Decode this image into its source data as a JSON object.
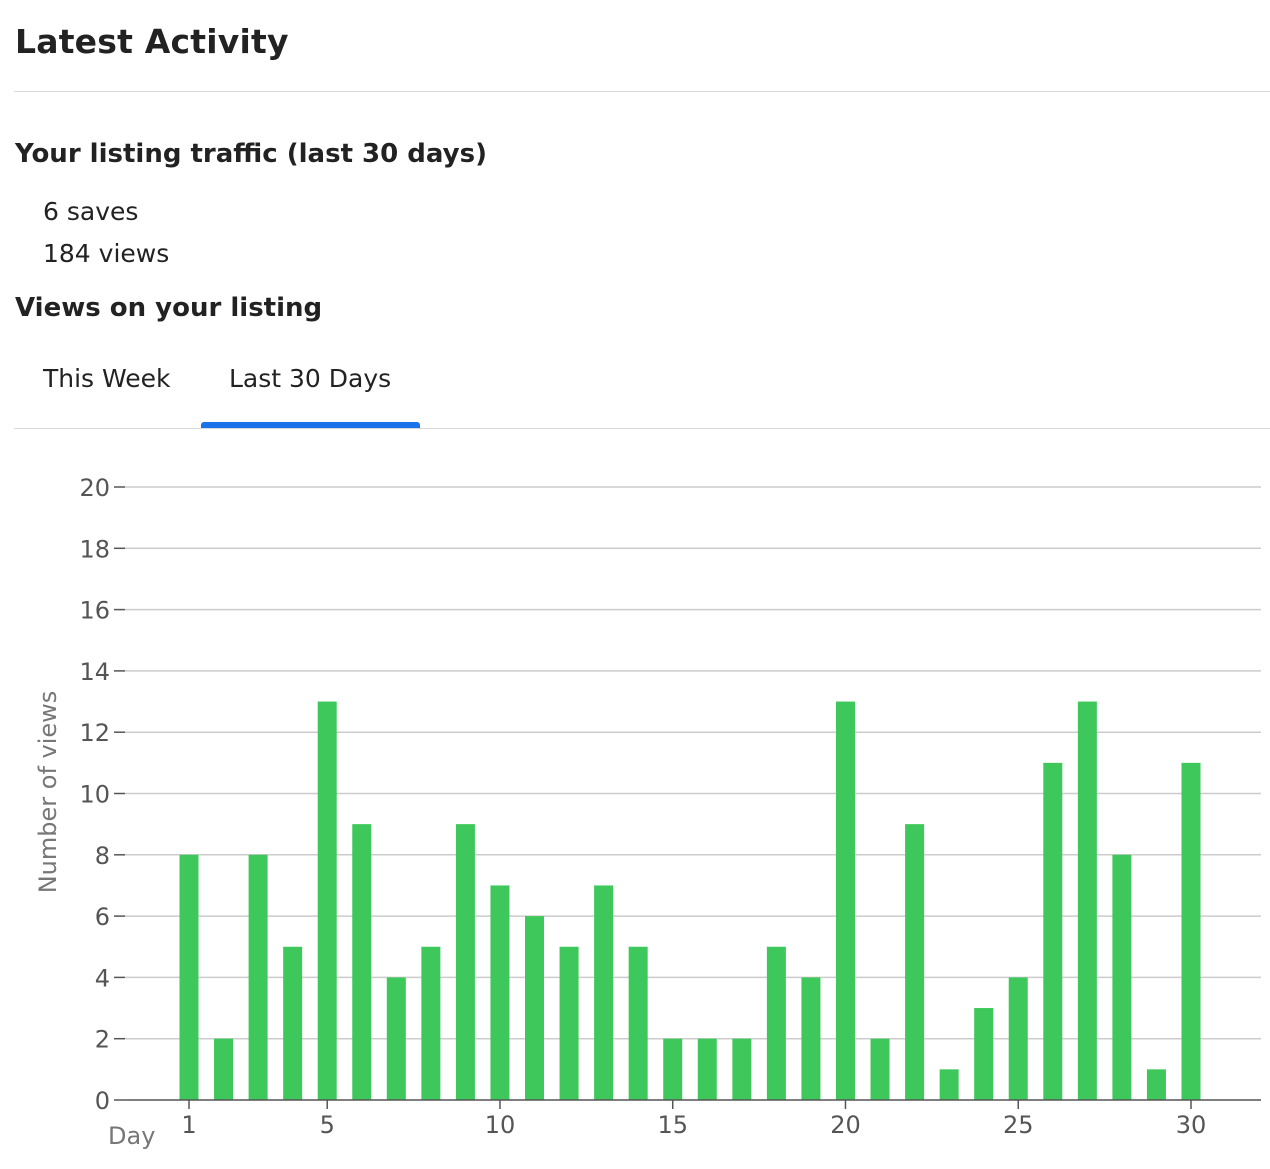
{
  "header": {
    "title": "Latest Activity"
  },
  "traffic": {
    "title": "Your listing traffic (last 30 days)",
    "saves_count": "6",
    "saves_label": "saves",
    "views_count": "184",
    "views_label": "views"
  },
  "views_section": {
    "title": "Views on your listing",
    "tabs": [
      {
        "label": "This Week",
        "active": false
      },
      {
        "label": "Last 30 Days",
        "active": true
      }
    ]
  },
  "colors": {
    "bar": "#3ec75a",
    "tab_indicator": "#1a73e8",
    "grid": "#cccccc",
    "axis": "#555555"
  },
  "chart_data": {
    "type": "bar",
    "x": [
      1,
      2,
      3,
      4,
      5,
      6,
      7,
      8,
      9,
      10,
      11,
      12,
      13,
      14,
      15,
      16,
      17,
      18,
      19,
      20,
      21,
      22,
      23,
      24,
      25,
      26,
      27,
      28,
      29,
      30
    ],
    "values": [
      8,
      2,
      8,
      5,
      13,
      9,
      4,
      5,
      9,
      7,
      6,
      5,
      7,
      5,
      2,
      2,
      2,
      5,
      4,
      13,
      2,
      9,
      1,
      3,
      4,
      11,
      13,
      8,
      1,
      11
    ],
    "x_tick_labels": [
      "1",
      "5",
      "10",
      "15",
      "20",
      "25",
      "30"
    ],
    "x_tick_values": [
      1,
      5,
      10,
      15,
      20,
      25,
      30
    ],
    "y_ticks": [
      0,
      2,
      4,
      6,
      8,
      10,
      12,
      14,
      16,
      18,
      20
    ],
    "ylim": [
      0,
      20
    ],
    "xlabel": "Day",
    "ylabel": "Number of views",
    "grid": true
  }
}
